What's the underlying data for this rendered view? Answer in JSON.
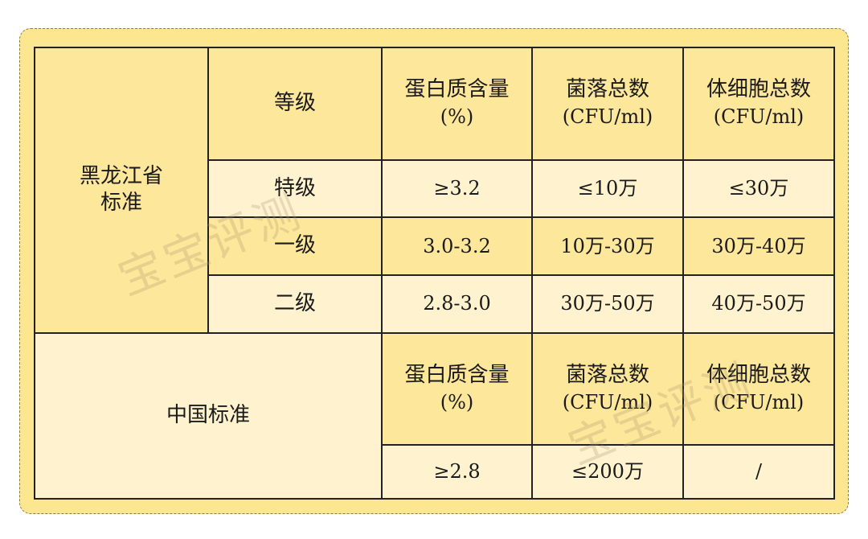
{
  "heilongjiang": {
    "label_line1": "黑龙江省",
    "label_line2": "标准",
    "headers": {
      "grade": "等级",
      "protein": "蛋白质含量",
      "protein_unit": "(%)",
      "colony": "菌落总数",
      "colony_unit": "(CFU/ml)",
      "somatic": "体细胞总数",
      "somatic_unit": "(CFU/ml)"
    },
    "rows": [
      {
        "grade": "特级",
        "protein": "≥3.2",
        "colony": "≤10万",
        "somatic": "≤30万"
      },
      {
        "grade": "一级",
        "protein": "3.0-3.2",
        "colony": "10万-30万",
        "somatic": "30万-40万"
      },
      {
        "grade": "二级",
        "protein": "2.8-3.0",
        "colony": "30万-50万",
        "somatic": "40万-50万"
      }
    ]
  },
  "china": {
    "label": "中国标准",
    "headers": {
      "protein": "蛋白质含量",
      "protein_unit": "(%)",
      "colony": "菌落总数",
      "colony_unit": "(CFU/ml)",
      "somatic": "体细胞总数",
      "somatic_unit": "(CFU/ml)"
    },
    "row": {
      "protein": "≥2.8",
      "colony": "≤200万",
      "somatic": "/"
    }
  },
  "watermark": "宝宝评测",
  "colors": {
    "frame": "#fde690",
    "cell_dark": "#fde79a",
    "cell_light": "#fff3cf",
    "border": "#222222"
  }
}
